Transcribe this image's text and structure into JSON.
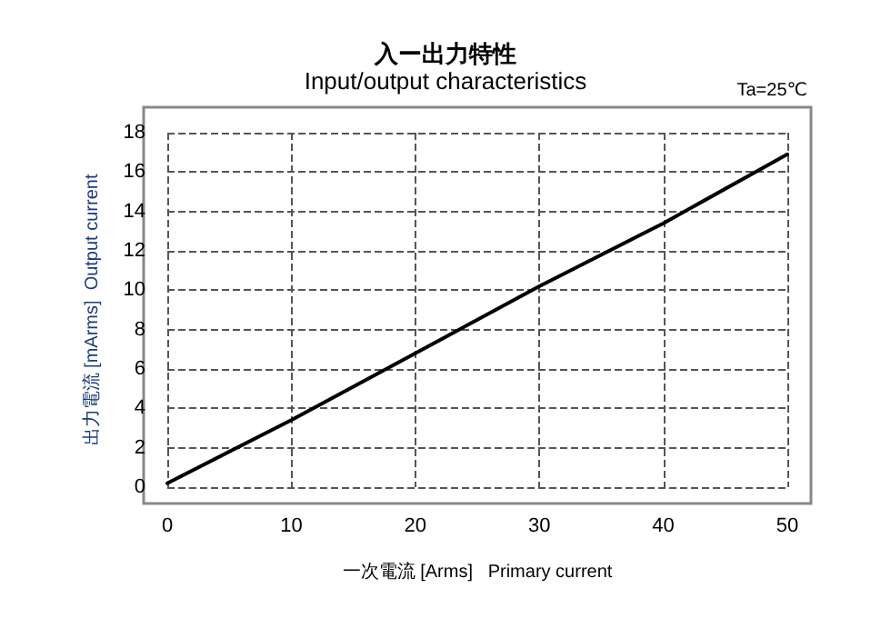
{
  "chart_data": {
    "type": "line",
    "title": "入ー出力特性",
    "subtitle": "Input/output characteristics",
    "xlabel": "一次電流 [Arms]   Primary current",
    "ylabel": "出力電流 [mArms]  Output current",
    "annotations": [
      "Ta=25℃"
    ],
    "x": [
      0,
      10,
      20,
      30,
      40,
      50
    ],
    "series": [
      {
        "color": "#000000",
        "values": [
          0.2,
          3.4,
          6.8,
          10.2,
          13.4,
          16.9
        ]
      }
    ],
    "xlim": [
      0,
      50
    ],
    "xticks": [
      0,
      10,
      20,
      30,
      40,
      50
    ],
    "ylim": [
      0,
      18
    ],
    "yticks": [
      0,
      2,
      4,
      6,
      8,
      10,
      12,
      14,
      16,
      18
    ],
    "grid": true,
    "marker": "none",
    "line_style": "solid"
  }
}
